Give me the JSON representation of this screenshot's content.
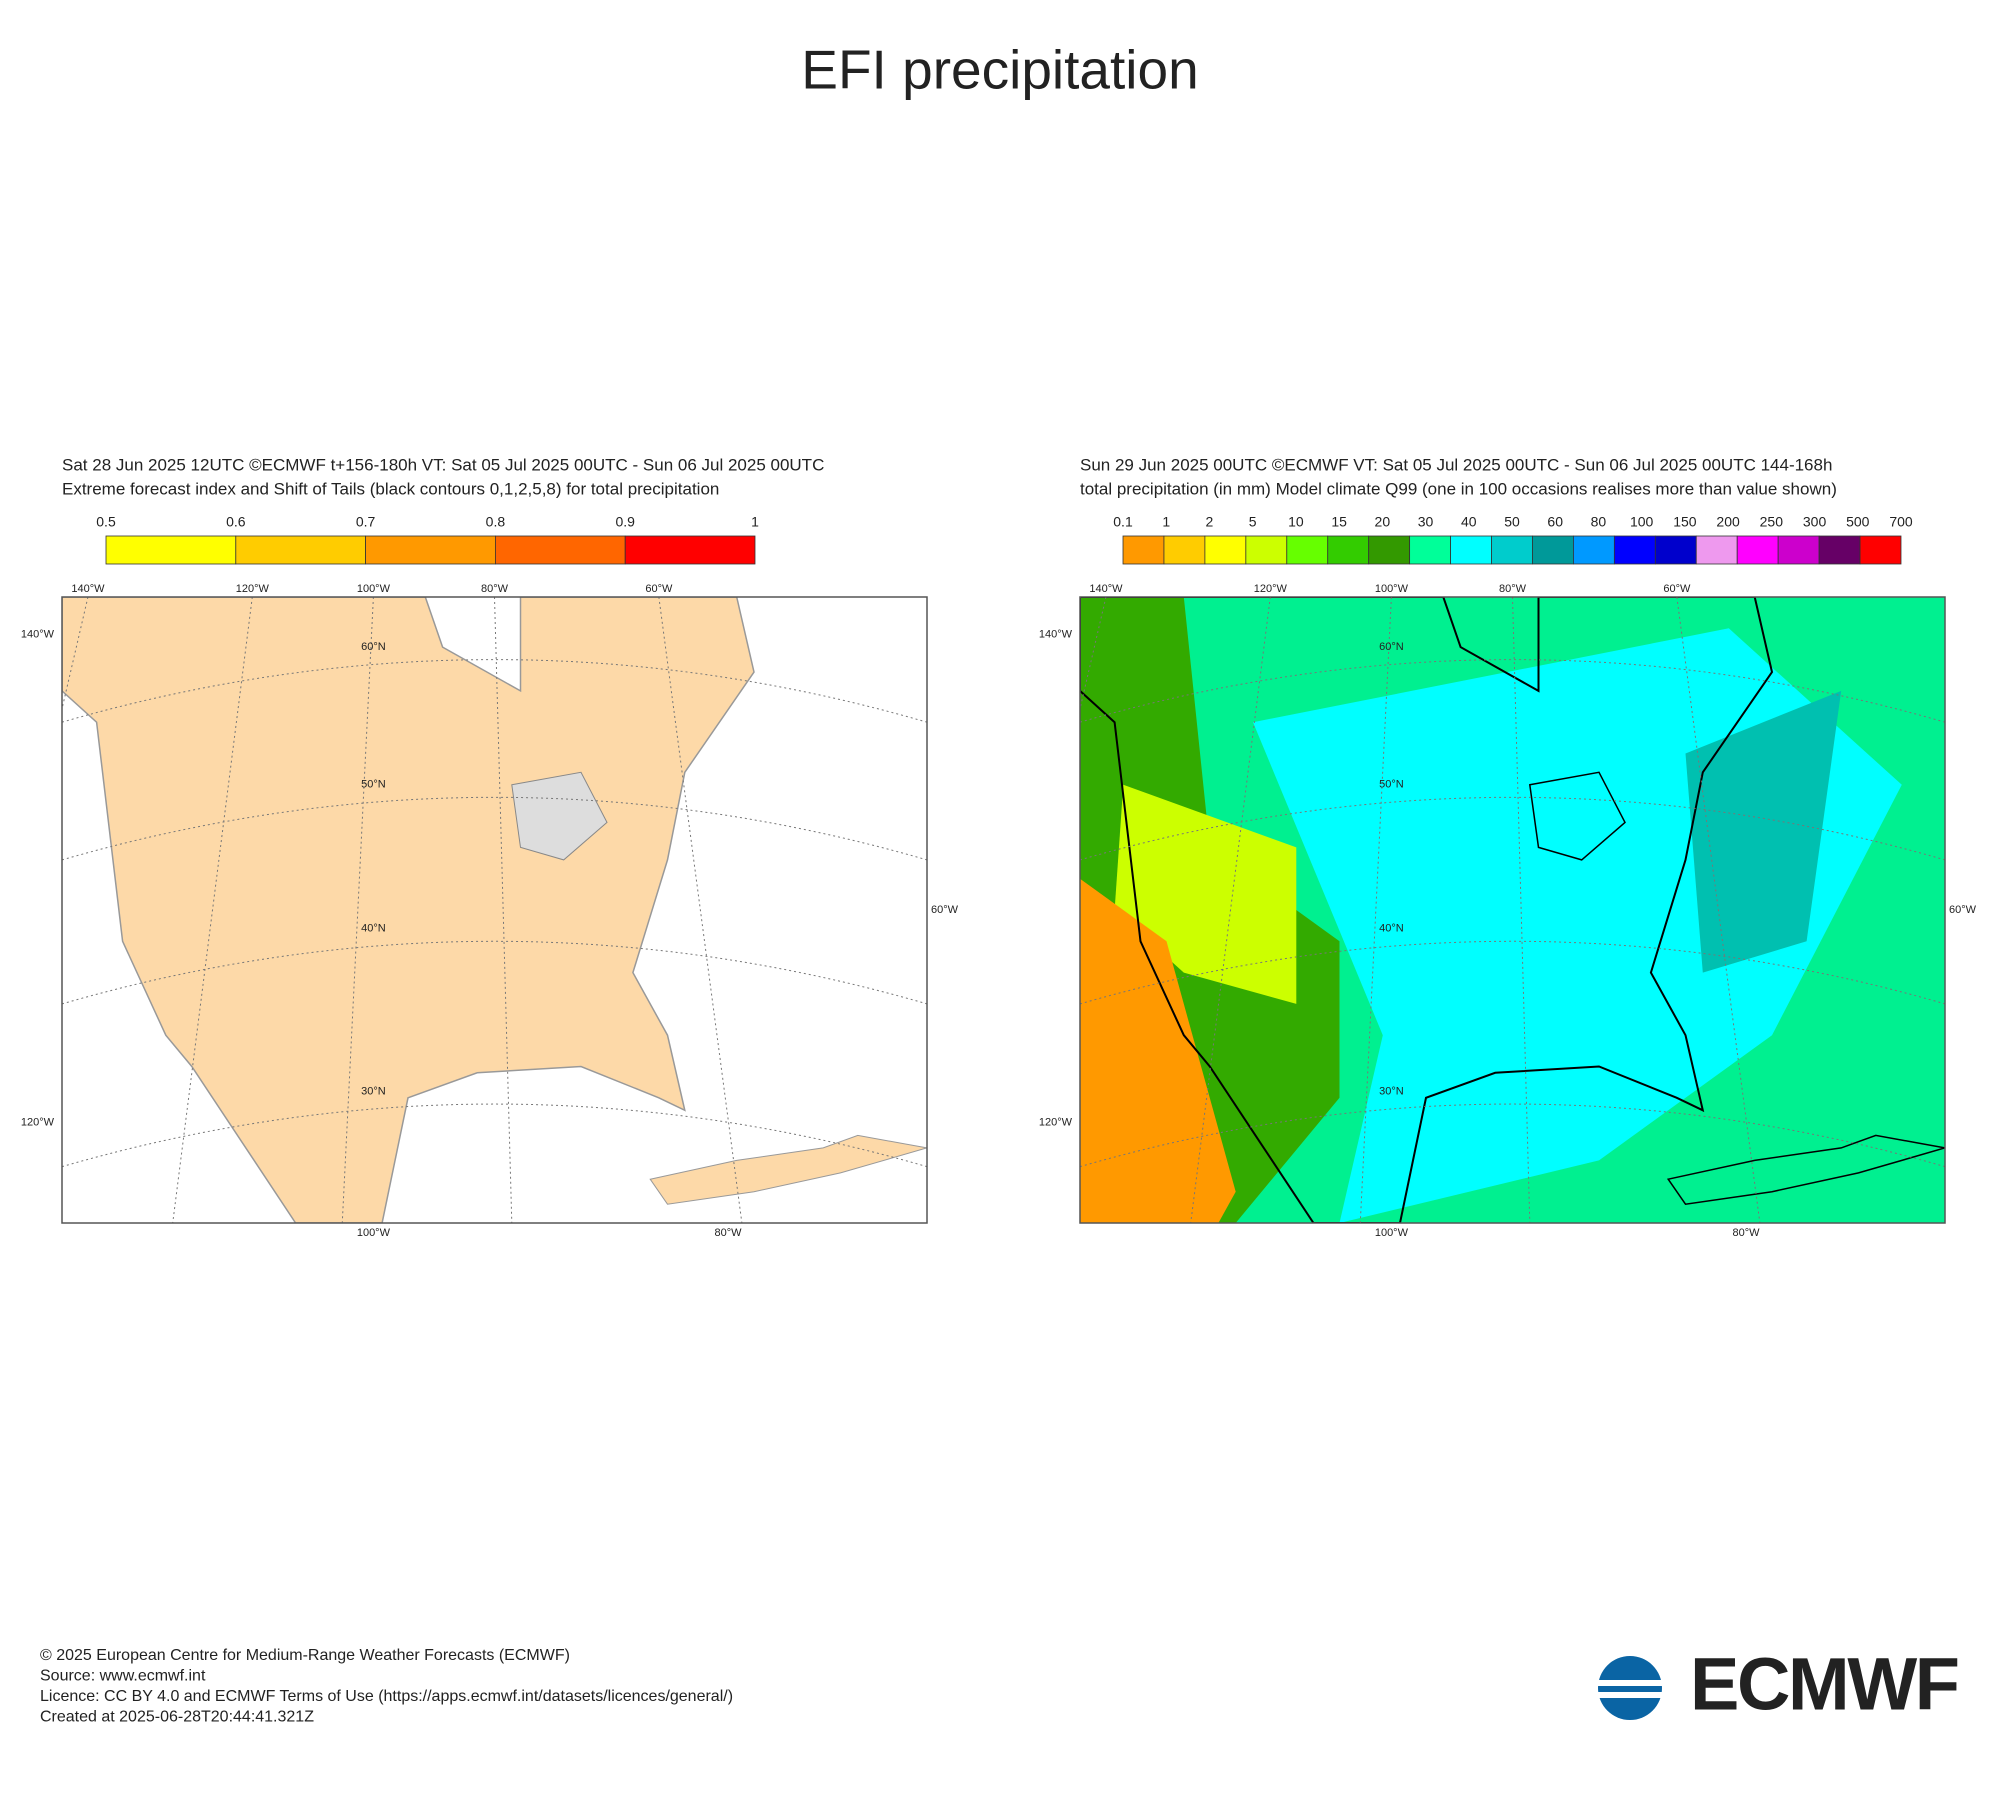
{
  "title": "EFI precipitation",
  "panels": [
    {
      "header": [
        "Sat 28 Jun 2025 12UTC ©ECMWF t+156-180h  VT: Sat 05 Jul 2025 00UTC - Sun 06 Jul 2025 00UTC",
        "Extreme forecast index and Shift of Tails (black contours 0,1,2,5,8) for total precipitation"
      ],
      "colorbar": {
        "labels": [
          "0.5",
          "0.6",
          "0.7",
          "0.8",
          "0.9",
          "1"
        ],
        "colors": [
          "#ffff00",
          "#ffcc00",
          "#ff9900",
          "#ff6600",
          "#ff0000"
        ]
      },
      "top_lon": [
        "140°W",
        "120°W",
        "100°W",
        "80°W",
        "60°W"
      ],
      "left_lon": [
        "140°W",
        "120°W"
      ],
      "right_lon": [
        "60°W"
      ],
      "bottom_lon": [
        "100°W",
        "80°W"
      ],
      "lat": [
        "60°N",
        "50°N",
        "40°N",
        "30°N"
      ]
    },
    {
      "header": [
        "Sun 29 Jun 2025 00UTC ©ECMWF VT: Sat 05 Jul 2025 00UTC - Sun 06 Jul 2025 00UTC   144-168h",
        "total precipitation (in mm)  Model climate Q99 (one in 100 occasions realises more than value shown)"
      ],
      "colorbar": {
        "labels": [
          "0.1",
          "1",
          "2",
          "5",
          "10",
          "15",
          "20",
          "30",
          "40",
          "50",
          "60",
          "80",
          "100",
          "150",
          "200",
          "250",
          "300",
          "500",
          "700"
        ],
        "colors": [
          "#ff9900",
          "#ffcc00",
          "#ffff00",
          "#ccff00",
          "#66ff00",
          "#33cc00",
          "#339900",
          "#00ff99",
          "#00ffff",
          "#00cccc",
          "#009999",
          "#0099ff",
          "#0000ff",
          "#0000cc",
          "#ee99ee",
          "#ff00ff",
          "#cc00cc",
          "#660066",
          "#ff0000"
        ]
      },
      "top_lon": [
        "140°W",
        "120°W",
        "100°W",
        "80°W",
        "60°W"
      ],
      "left_lon": [
        "140°W",
        "120°W"
      ],
      "right_lon": [
        "60°W"
      ],
      "bottom_lon": [
        "100°W",
        "80°W"
      ],
      "lat": [
        "60°N",
        "50°N",
        "40°N",
        "30°N"
      ]
    }
  ],
  "footer": [
    "© 2025 European Centre for Medium-Range Weather Forecasts (ECMWF)",
    "Source: www.ecmwf.int",
    "Licence: CC BY 4.0 and ECMWF Terms of Use (https://apps.ecmwf.int/datasets/licences/general/)",
    "Created at 2025-06-28T20:44:41.321Z"
  ],
  "logo": "ECMWF"
}
